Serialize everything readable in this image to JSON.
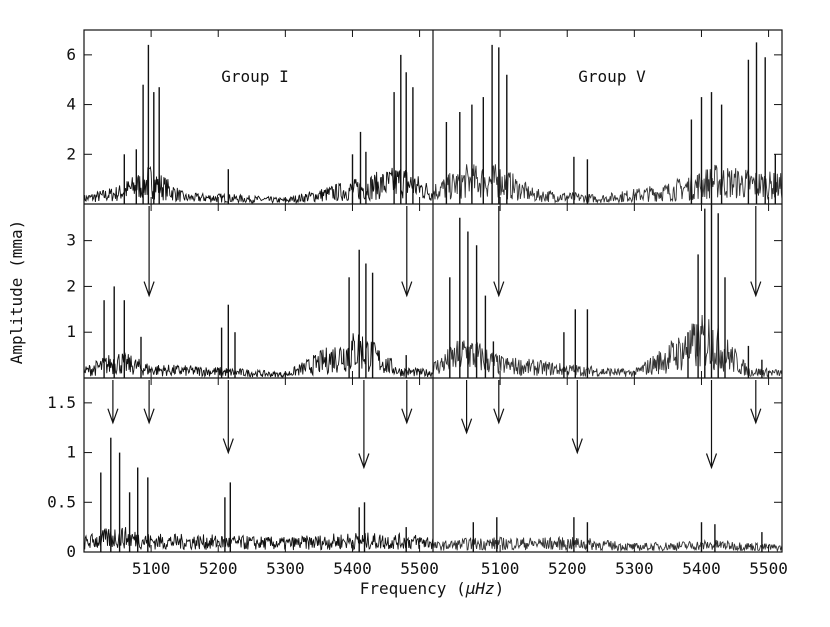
{
  "chart_data": {
    "type": "line",
    "xlabel_prefix": "Frequency (",
    "xlabel_unit": "μHz",
    "xlabel_suffix": ")",
    "ylabel": "Amplitude (mma)",
    "group_labels": [
      "Group I",
      "Group V"
    ],
    "x_ticks": [
      "5100",
      "5200",
      "5300",
      "5400",
      "5500",
      "5100",
      "5200",
      "5300",
      "5400",
      "5500"
    ],
    "panels": [
      {
        "name": "top",
        "ylim": [
          0,
          7
        ],
        "yticks": [
          "2",
          "4",
          "6"
        ],
        "peaks": {
          "left": [
            {
              "x": 5060,
              "y": 2.0
            },
            {
              "x": 5078,
              "y": 2.2
            },
            {
              "x": 5088,
              "y": 4.8
            },
            {
              "x": 5096,
              "y": 6.4
            },
            {
              "x": 5104,
              "y": 4.5
            },
            {
              "x": 5112,
              "y": 4.7
            },
            {
              "x": 5215,
              "y": 1.4
            },
            {
              "x": 5400,
              "y": 2.0
            },
            {
              "x": 5412,
              "y": 2.9
            },
            {
              "x": 5420,
              "y": 2.1
            },
            {
              "x": 5462,
              "y": 4.5
            },
            {
              "x": 5472,
              "y": 6.0
            },
            {
              "x": 5480,
              "y": 5.3
            },
            {
              "x": 5490,
              "y": 4.7
            }
          ],
          "right": [
            {
              "x": 5020,
              "y": 3.3
            },
            {
              "x": 5040,
              "y": 3.7
            },
            {
              "x": 5058,
              "y": 4.0
            },
            {
              "x": 5075,
              "y": 4.3
            },
            {
              "x": 5088,
              "y": 6.4
            },
            {
              "x": 5098,
              "y": 6.3
            },
            {
              "x": 5110,
              "y": 5.2
            },
            {
              "x": 5210,
              "y": 1.9
            },
            {
              "x": 5230,
              "y": 1.8
            },
            {
              "x": 5385,
              "y": 3.4
            },
            {
              "x": 5400,
              "y": 4.3
            },
            {
              "x": 5415,
              "y": 4.5
            },
            {
              "x": 5430,
              "y": 4.0
            },
            {
              "x": 5470,
              "y": 5.8
            },
            {
              "x": 5482,
              "y": 6.5
            },
            {
              "x": 5495,
              "y": 5.9
            },
            {
              "x": 5510,
              "y": 2.0
            }
          ]
        },
        "arrows_left": [],
        "arrows_right": []
      },
      {
        "name": "middle",
        "ylim": [
          0,
          3.8
        ],
        "yticks": [
          "1",
          "2",
          "3"
        ],
        "peaks": {
          "left": [
            {
              "x": 5030,
              "y": 1.7
            },
            {
              "x": 5045,
              "y": 2.0
            },
            {
              "x": 5060,
              "y": 1.7
            },
            {
              "x": 5085,
              "y": 0.9
            },
            {
              "x": 5205,
              "y": 1.1
            },
            {
              "x": 5215,
              "y": 1.6
            },
            {
              "x": 5225,
              "y": 1.0
            },
            {
              "x": 5395,
              "y": 2.2
            },
            {
              "x": 5410,
              "y": 2.8
            },
            {
              "x": 5420,
              "y": 2.5
            },
            {
              "x": 5430,
              "y": 2.3
            },
            {
              "x": 5480,
              "y": 0.5
            }
          ],
          "right": [
            {
              "x": 5025,
              "y": 2.2
            },
            {
              "x": 5040,
              "y": 3.5
            },
            {
              "x": 5052,
              "y": 3.2
            },
            {
              "x": 5065,
              "y": 2.9
            },
            {
              "x": 5078,
              "y": 1.8
            },
            {
              "x": 5090,
              "y": 0.8
            },
            {
              "x": 5195,
              "y": 1.0
            },
            {
              "x": 5212,
              "y": 1.5
            },
            {
              "x": 5230,
              "y": 1.5
            },
            {
              "x": 5380,
              "y": 1.0
            },
            {
              "x": 5395,
              "y": 2.7
            },
            {
              "x": 5405,
              "y": 3.7
            },
            {
              "x": 5415,
              "y": 3.8
            },
            {
              "x": 5425,
              "y": 3.6
            },
            {
              "x": 5435,
              "y": 2.2
            },
            {
              "x": 5470,
              "y": 0.7
            },
            {
              "x": 5490,
              "y": 0.4
            }
          ]
        },
        "arrows_left": [
          {
            "x": 5097,
            "y": 1.8
          },
          {
            "x": 5481,
            "y": 1.8
          }
        ],
        "arrows_right": [
          {
            "x": 5098,
            "y": 1.8
          },
          {
            "x": 5481,
            "y": 1.8
          }
        ]
      },
      {
        "name": "bottom",
        "ylim": [
          0,
          1.75
        ],
        "yticks": [
          "0",
          "0.5",
          "1",
          "1.5"
        ],
        "peaks": {
          "left": [
            {
              "x": 5025,
              "y": 0.8
            },
            {
              "x": 5040,
              "y": 1.15
            },
            {
              "x": 5053,
              "y": 1.0
            },
            {
              "x": 5068,
              "y": 0.6
            },
            {
              "x": 5080,
              "y": 0.85
            },
            {
              "x": 5095,
              "y": 0.75
            },
            {
              "x": 5210,
              "y": 0.55
            },
            {
              "x": 5218,
              "y": 0.7
            },
            {
              "x": 5410,
              "y": 0.45
            },
            {
              "x": 5418,
              "y": 0.5
            },
            {
              "x": 5480,
              "y": 0.25
            }
          ],
          "right": [
            {
              "x": 5060,
              "y": 0.3
            },
            {
              "x": 5095,
              "y": 0.35
            },
            {
              "x": 5210,
              "y": 0.35
            },
            {
              "x": 5230,
              "y": 0.3
            },
            {
              "x": 5400,
              "y": 0.3
            },
            {
              "x": 5420,
              "y": 0.28
            },
            {
              "x": 5490,
              "y": 0.2
            }
          ]
        },
        "arrows_left": [
          {
            "x": 5043,
            "y": 1.3
          },
          {
            "x": 5097,
            "y": 1.3
          },
          {
            "x": 5215,
            "y": 1.0
          },
          {
            "x": 5417,
            "y": 0.85
          },
          {
            "x": 5481,
            "y": 1.3
          }
        ],
        "arrows_right": [
          {
            "x": 5050,
            "y": 1.2
          },
          {
            "x": 5098,
            "y": 1.3
          },
          {
            "x": 5215,
            "y": 1.0
          },
          {
            "x": 5415,
            "y": 0.85
          },
          {
            "x": 5481,
            "y": 1.3
          }
        ]
      }
    ],
    "noise": {
      "left": [
        [
          {
            "x": 5000,
            "y": 0.3
          },
          {
            "x": 5050,
            "y": 0.6
          },
          {
            "x": 5100,
            "y": 1.3
          },
          {
            "x": 5150,
            "y": 0.35
          },
          {
            "x": 5200,
            "y": 0.35
          },
          {
            "x": 5300,
            "y": 0.2
          },
          {
            "x": 5400,
            "y": 0.8
          },
          {
            "x": 5475,
            "y": 1.3
          },
          {
            "x": 5520,
            "y": 0.6
          }
        ],
        [
          {
            "x": 5000,
            "y": 0.2
          },
          {
            "x": 5050,
            "y": 0.5
          },
          {
            "x": 5100,
            "y": 0.25
          },
          {
            "x": 5200,
            "y": 0.2
          },
          {
            "x": 5300,
            "y": 0.1
          },
          {
            "x": 5410,
            "y": 0.9
          },
          {
            "x": 5470,
            "y": 0.2
          },
          {
            "x": 5520,
            "y": 0.15
          }
        ],
        [
          {
            "x": 5000,
            "y": 0.13
          },
          {
            "x": 5050,
            "y": 0.22
          },
          {
            "x": 5100,
            "y": 0.15
          },
          {
            "x": 5200,
            "y": 0.14
          },
          {
            "x": 5300,
            "y": 0.12
          },
          {
            "x": 5400,
            "y": 0.16
          },
          {
            "x": 5520,
            "y": 0.14
          }
        ]
      ],
      "right": [
        [
          {
            "x": 5000,
            "y": 0.7
          },
          {
            "x": 5050,
            "y": 1.3
          },
          {
            "x": 5100,
            "y": 1.3
          },
          {
            "x": 5150,
            "y": 0.5
          },
          {
            "x": 5250,
            "y": 0.3
          },
          {
            "x": 5350,
            "y": 0.7
          },
          {
            "x": 5420,
            "y": 1.3
          },
          {
            "x": 5520,
            "y": 1.0
          }
        ],
        [
          {
            "x": 5000,
            "y": 0.3
          },
          {
            "x": 5050,
            "y": 0.8
          },
          {
            "x": 5100,
            "y": 0.4
          },
          {
            "x": 5200,
            "y": 0.25
          },
          {
            "x": 5300,
            "y": 0.15
          },
          {
            "x": 5410,
            "y": 1.2
          },
          {
            "x": 5470,
            "y": 0.2
          },
          {
            "x": 5520,
            "y": 0.15
          }
        ],
        [
          {
            "x": 5000,
            "y": 0.08
          },
          {
            "x": 5060,
            "y": 0.12
          },
          {
            "x": 5100,
            "y": 0.12
          },
          {
            "x": 5220,
            "y": 0.12
          },
          {
            "x": 5300,
            "y": 0.07
          },
          {
            "x": 5420,
            "y": 0.1
          },
          {
            "x": 5520,
            "y": 0.06
          }
        ]
      ]
    },
    "xlim_per_half": [
      5000,
      5520
    ]
  }
}
